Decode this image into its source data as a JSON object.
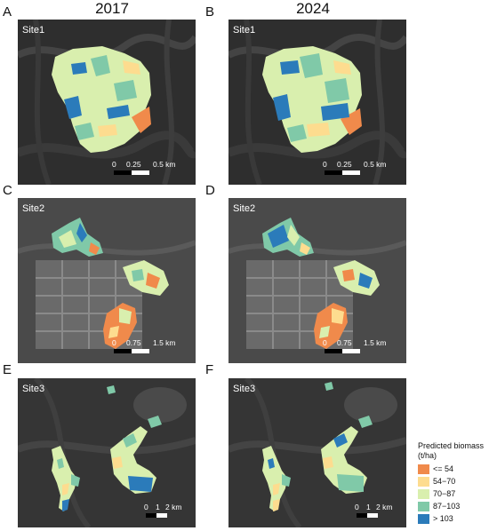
{
  "columns": [
    "2017",
    "2024"
  ],
  "panels": [
    {
      "letter": "A",
      "site": "Site1",
      "scale": [
        "0",
        "0.25",
        "0.5 km"
      ]
    },
    {
      "letter": "B",
      "site": "Site1",
      "scale": [
        "0",
        "0.25",
        "0.5 km"
      ]
    },
    {
      "letter": "C",
      "site": "Site2",
      "scale": [
        "0",
        "0.75",
        "1.5 km"
      ]
    },
    {
      "letter": "D",
      "site": "Site2",
      "scale": [
        "0",
        "0.75",
        "1.5 km"
      ]
    },
    {
      "letter": "E",
      "site": "Site3",
      "scale": [
        "0",
        "1",
        "2 km"
      ]
    },
    {
      "letter": "F",
      "site": "Site3",
      "scale": [
        "0",
        "1",
        "2 km"
      ]
    }
  ],
  "legend": {
    "title": "Predicted biomass",
    "unit": "(t/ha)",
    "items": [
      {
        "label": "<= 54",
        "color": "#f08a4b"
      },
      {
        "label": "54−70",
        "color": "#fddc8f"
      },
      {
        "label": "70−87",
        "color": "#d9efae"
      },
      {
        "label": "87−103",
        "color": "#80c9a8"
      },
      {
        "label": "> 103",
        "color": "#2b7bba"
      }
    ]
  }
}
